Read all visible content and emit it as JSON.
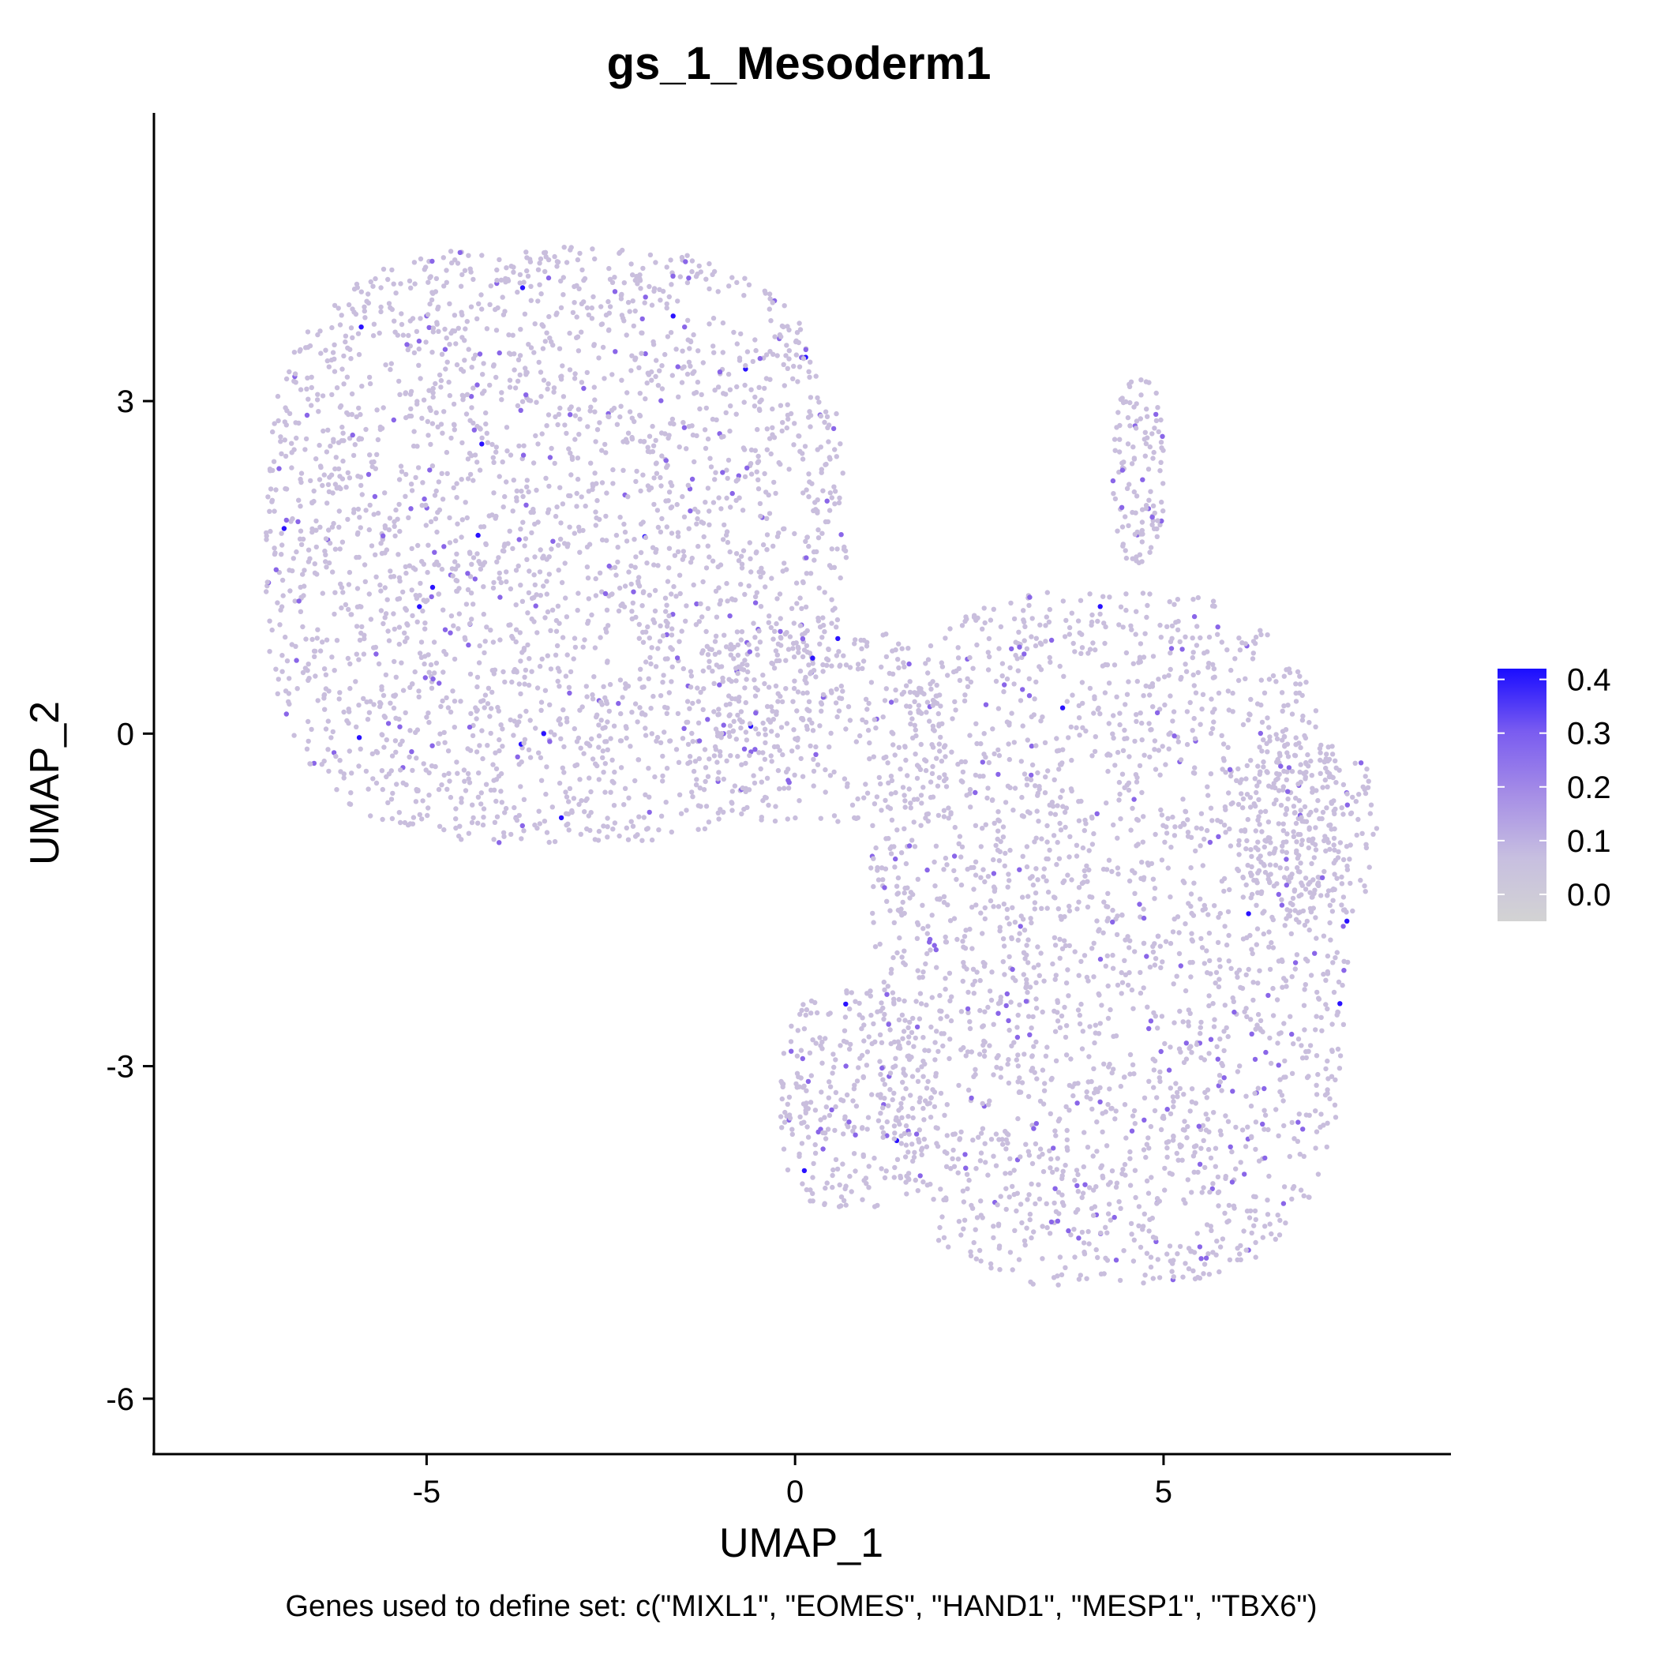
{
  "chart_data": {
    "type": "scatter",
    "title": "gs_1_Mesoderm1",
    "xlabel": "UMAP_1",
    "ylabel": "UMAP_2",
    "caption": "Genes used to define set: c(\"MIXL1\", \"EOMES\", \"HAND1\", \"MESP1\", \"TBX6\")",
    "xlim": [
      -8.7,
      8.9
    ],
    "ylim": [
      -6.5,
      5.6
    ],
    "x_ticks": [
      -5,
      0,
      5
    ],
    "x_tick_labels": [
      "-5",
      "0",
      "5"
    ],
    "y_ticks": [
      3,
      0,
      -3,
      -6
    ],
    "y_tick_labels": [
      "3",
      "0",
      "-3",
      "-6"
    ],
    "grid": false,
    "legend": {
      "placement": "right",
      "type": "colorbar",
      "range": [
        -0.05,
        0.42
      ],
      "ticks": [
        0.4,
        0.3,
        0.2,
        0.1,
        0.0
      ],
      "tick_labels": [
        "0.4",
        "0.3",
        "0.2",
        "0.1",
        "0.0"
      ],
      "colors": [
        "#d3d3d3",
        "#c7bfe0",
        "#a68ee6",
        "#7a5cf0",
        "#1a0dff"
      ]
    },
    "point_color_default": "#c9bedd",
    "point_color_high": "#8a66e8",
    "point_color_max": "#2a12ff",
    "regions": [
      {
        "name": "upper-left cluster",
        "x": [
          -7.2,
          0.7
        ],
        "y": [
          -1.0,
          4.4
        ],
        "density": 2600
      },
      {
        "name": "bridge",
        "x": [
          -1.5,
          2.0
        ],
        "y": [
          -0.8,
          1.0
        ],
        "density": 300
      },
      {
        "name": "right lobe",
        "x": [
          1.0,
          7.5
        ],
        "y": [
          -5.0,
          1.3
        ],
        "density": 2300
      },
      {
        "name": "far-right protrusion",
        "x": [
          6.0,
          7.9
        ],
        "y": [
          -1.7,
          0.0
        ],
        "density": 250
      },
      {
        "name": "upper-right spur",
        "x": [
          4.3,
          5.0
        ],
        "y": [
          1.5,
          3.2
        ],
        "density": 120
      },
      {
        "name": "lower-left arm",
        "x": [
          -0.2,
          1.8
        ],
        "y": [
          -4.3,
          -2.3
        ],
        "density": 280
      }
    ]
  }
}
